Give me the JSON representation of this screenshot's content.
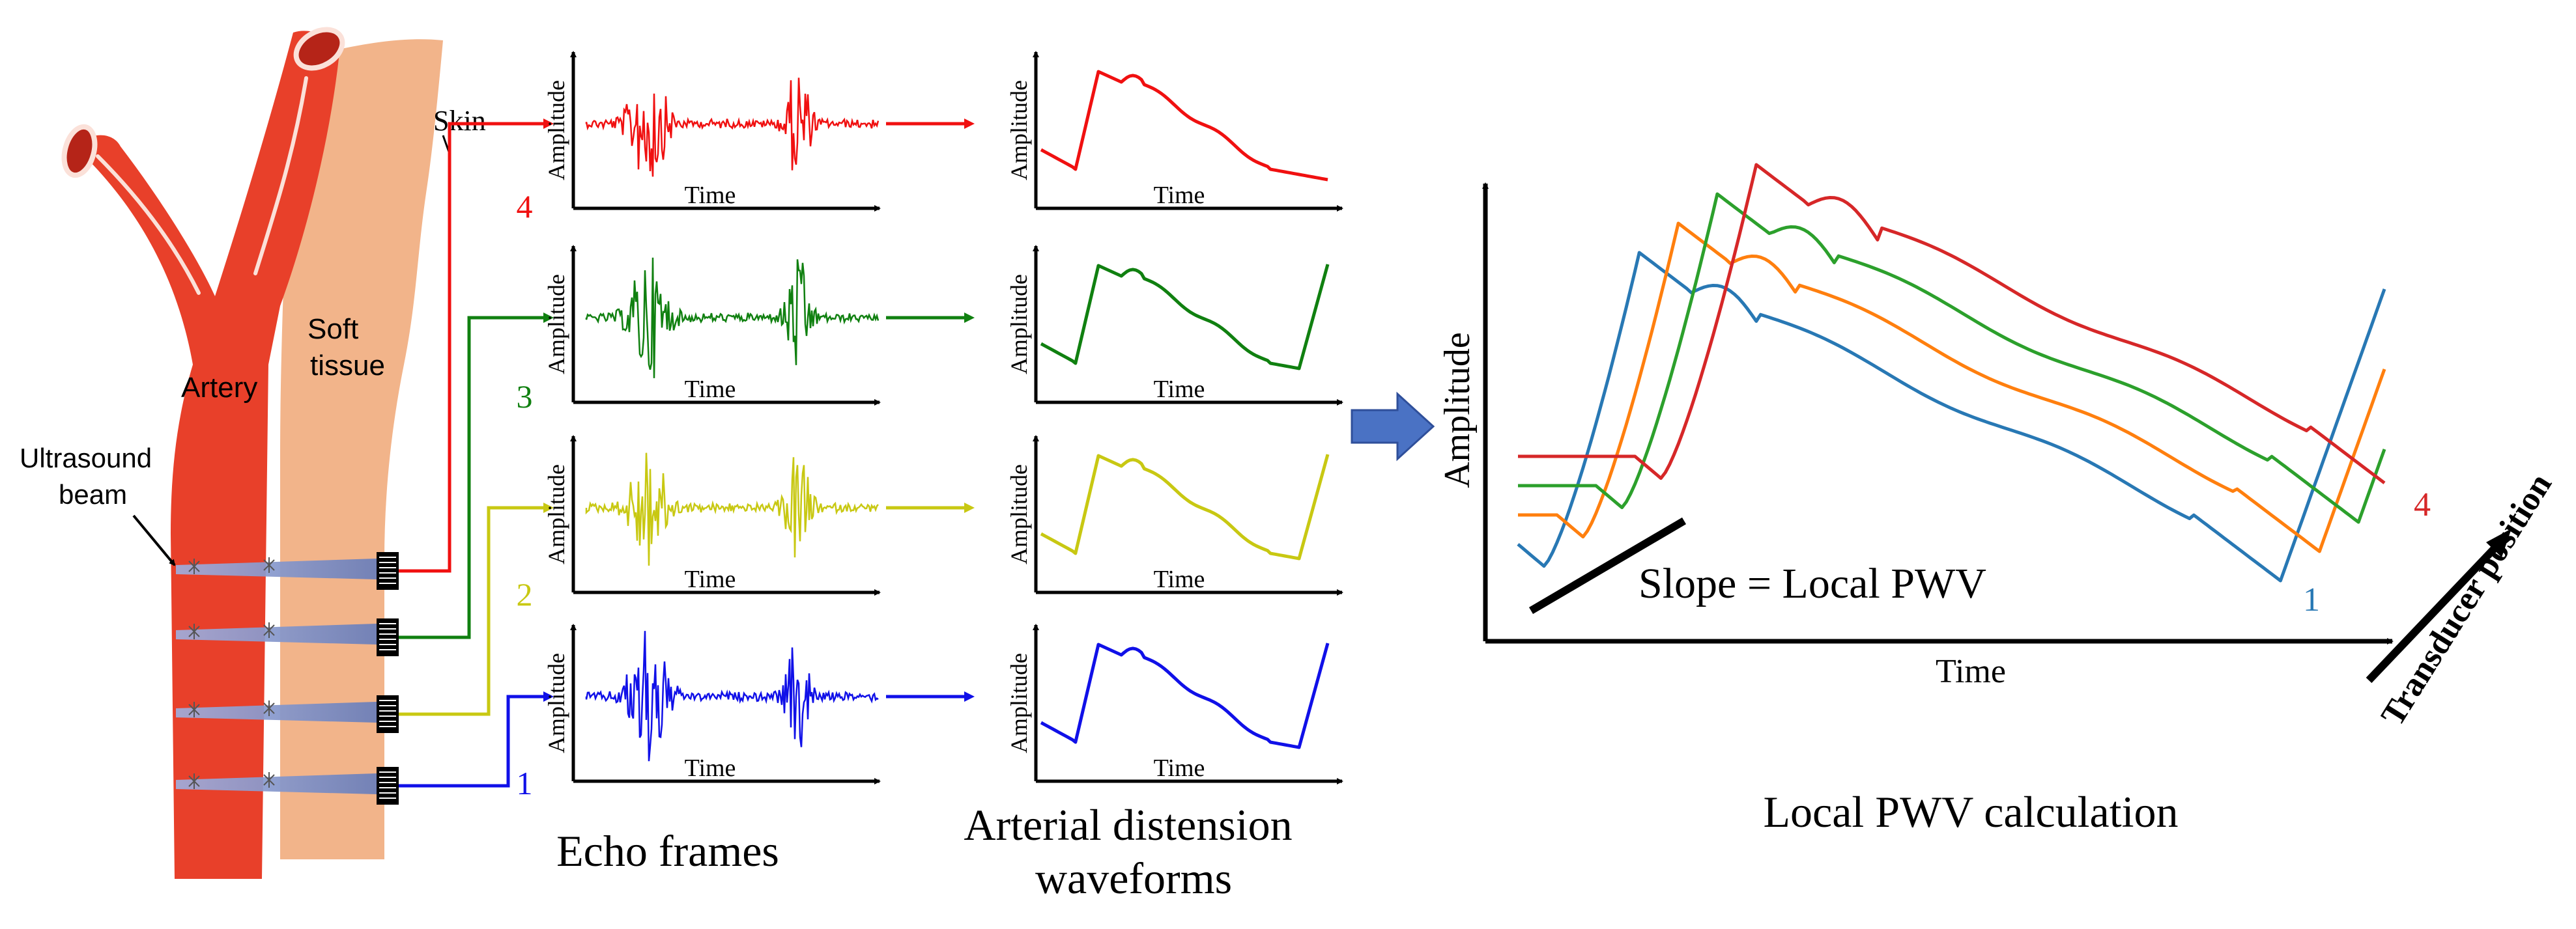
{
  "colors": {
    "red": "#f01010",
    "green": "#108010",
    "yellow": "#c8c812",
    "blue": "#1010e8",
    "wave_blue": "#2878b4",
    "wave_orange": "#ff7f0e",
    "wave_green": "#2ca02c",
    "wave_red": "#d62728",
    "artery": "#e8402a",
    "tissue": "#f2b48a",
    "beam": "#7d8fc4",
    "arrow_fill": "#4a72c4"
  },
  "anatomy": {
    "skin_label": "Skin",
    "soft_tissue_label": "Soft\ntissue",
    "artery_label": "Artery",
    "ultrasound_label": "Ultrasound\nbeam"
  },
  "channel_numbers": [
    "4",
    "3",
    "2",
    "1"
  ],
  "axis_labels": {
    "amplitude": "Amplitude",
    "time": "Time"
  },
  "column_titles": {
    "echo": "Echo frames",
    "distension": "Arterial distension\nwaveforms"
  },
  "pwv_chart": {
    "ylabel": "Amplitude",
    "xlabel": "Time",
    "zlabel": "Transducer position",
    "slope_label": "Slope = Local PWV",
    "first_label": "1",
    "last_label": "4",
    "title": "Local PWV calculation"
  },
  "chart_data": {
    "type": "line",
    "title": "Local PWV calculation",
    "xlabel": "Time",
    "ylabel": "Amplitude",
    "zlabel": "Transducer position",
    "annotation": "Slope = Local PWV",
    "series": [
      {
        "name": "1",
        "color": "#2878b4"
      },
      {
        "name": "2",
        "color": "#ff7f0e"
      },
      {
        "name": "3",
        "color": "#2ca02c"
      },
      {
        "name": "4",
        "color": "#d62728"
      }
    ]
  }
}
